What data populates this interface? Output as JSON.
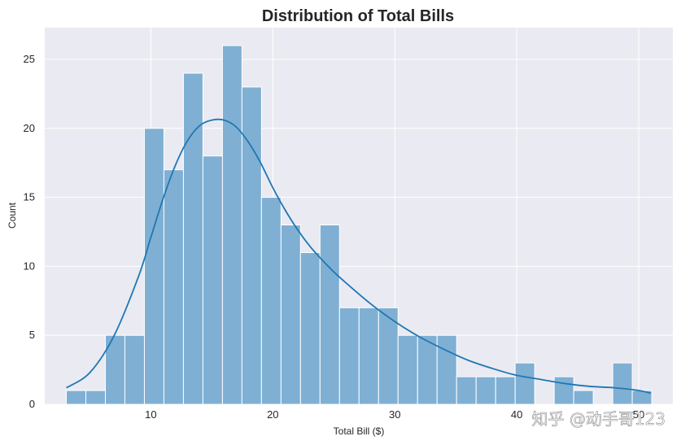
{
  "chart_data": {
    "type": "bar",
    "title": "Distribution of Total Bills",
    "xlabel": "Total Bill ($)",
    "ylabel": "Count",
    "xlim": [
      1.3,
      52.8
    ],
    "ylim": [
      0,
      27.3
    ],
    "xticks": [
      10,
      20,
      30,
      40,
      50
    ],
    "yticks": [
      0,
      5,
      10,
      15,
      20,
      25
    ],
    "bin_start": 3.07,
    "bin_width": 1.6,
    "values": [
      1,
      1,
      5,
      5,
      20,
      17,
      24,
      18,
      26,
      23,
      15,
      13,
      11,
      13,
      7,
      7,
      7,
      5,
      5,
      5,
      2,
      2,
      2,
      3,
      0,
      2,
      1,
      0,
      3,
      1
    ],
    "kde": {
      "x": [
        3.07,
        5,
        7,
        9,
        10,
        11,
        12,
        13,
        14,
        15,
        16,
        17,
        18,
        19,
        20,
        21,
        22,
        23,
        24,
        25,
        26,
        28,
        30,
        32,
        34,
        36,
        38,
        40,
        42,
        44,
        46,
        48,
        50,
        51
      ],
      "y": [
        1.2,
        2.3,
        5.0,
        9.3,
        12.1,
        14.9,
        17.3,
        19.1,
        20.2,
        20.6,
        20.6,
        20.1,
        19.0,
        17.5,
        15.7,
        14.1,
        12.7,
        11.5,
        10.5,
        9.6,
        8.8,
        7.3,
        6.0,
        4.9,
        4.0,
        3.2,
        2.6,
        2.1,
        1.8,
        1.5,
        1.3,
        1.2,
        1.0,
        0.8
      ]
    },
    "bar_color": "#7fb0d3",
    "bar_edge_color": "#ffffff",
    "line_color": "#1f77b4",
    "background_color": "#eaeaf2",
    "grid_color": "#ffffff",
    "grid": true,
    "legend": "none"
  },
  "watermark": {
    "text": "知乎 @动手哥123"
  }
}
